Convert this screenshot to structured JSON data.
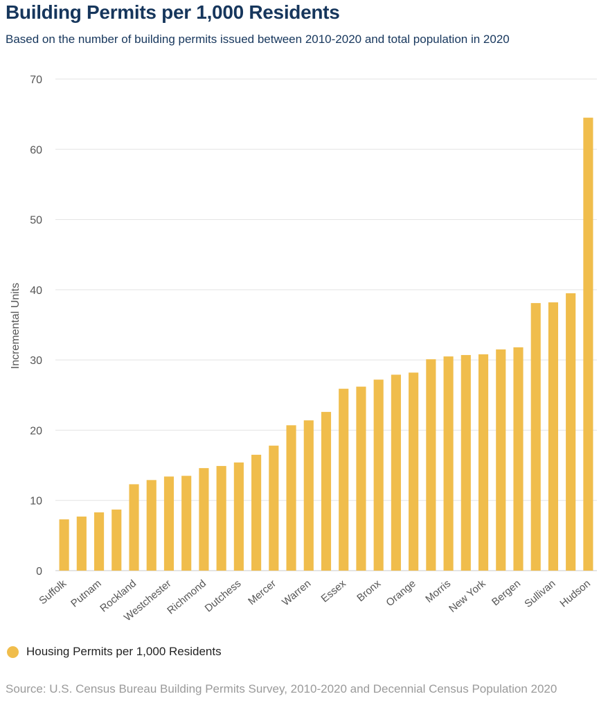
{
  "chart_data": {
    "type": "bar",
    "title": "Building Permits per 1,000 Residents",
    "subtitle": "Based on the number of building permits issued between 2010-2020 and total population in 2020",
    "ylabel": "Incremental Units",
    "xlabel": "",
    "ylim": [
      0,
      70
    ],
    "yticks": [
      0,
      10,
      20,
      30,
      40,
      50,
      60,
      70
    ],
    "grid": true,
    "legend_position": "bottom-left",
    "bar_color": "#f0bd4c",
    "categories": [
      "Suffolk",
      "",
      "Putnam",
      "",
      "Rockland",
      "",
      "Westchester",
      "",
      "Richmond",
      "",
      "Dutchess",
      "",
      "Mercer",
      "",
      "Warren",
      "",
      "Essex",
      "",
      "Bronx",
      "",
      "Orange",
      "",
      "Morris",
      "",
      "New York",
      "",
      "Bergen",
      "",
      "Sullivan",
      "",
      "Hudson"
    ],
    "series": [
      {
        "name": "Housing Permits per 1,000 Residents",
        "values": [
          7.3,
          7.7,
          8.3,
          8.7,
          12.3,
          12.9,
          13.4,
          13.5,
          14.6,
          14.9,
          15.4,
          16.5,
          17.8,
          20.7,
          21.4,
          22.6,
          25.9,
          26.2,
          27.2,
          27.9,
          28.2,
          30.1,
          30.5,
          30.7,
          30.8,
          31.5,
          31.8,
          38.1,
          38.2,
          39.5,
          64.5
        ]
      }
    ],
    "source": "Source: U.S. Census Bureau Building Permits Survey, 2010-2020 and Decennial Census Population 2020"
  }
}
